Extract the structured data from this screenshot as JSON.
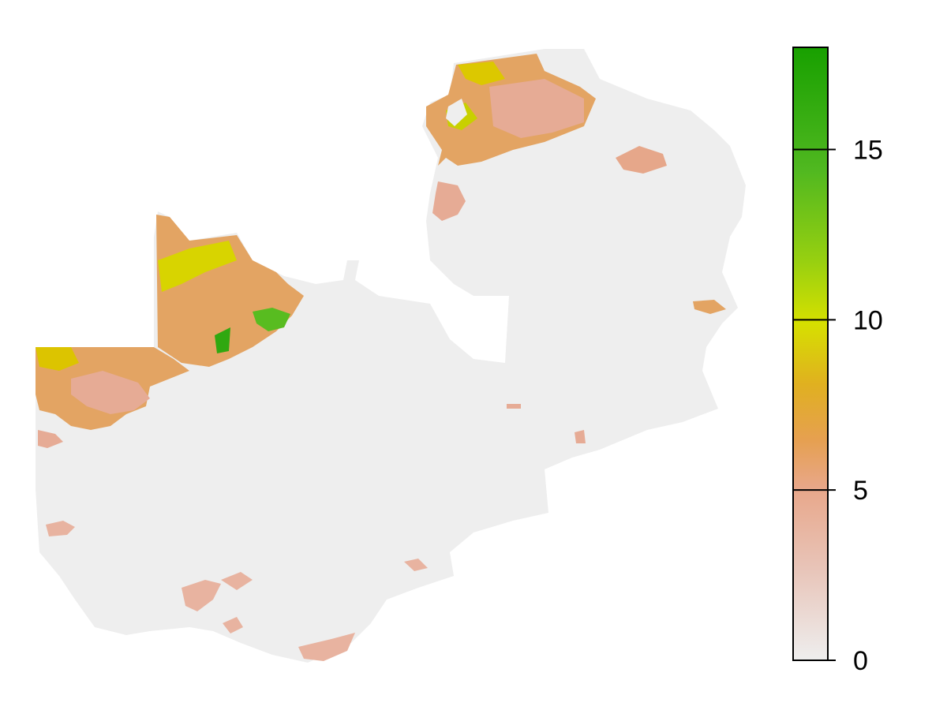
{
  "legend": {
    "min": 0,
    "max": 18,
    "ticks": [
      0,
      5,
      10,
      15
    ],
    "tick_labels": [
      "0",
      "5",
      "10",
      "15"
    ],
    "color_stops": [
      "#eeeeee",
      "#e8b3a0",
      "#e6a050",
      "#e0c020",
      "#c8dc00",
      "#78c820",
      "#40b020",
      "#18a000"
    ]
  },
  "colors": {
    "background_land": "#eeeeee",
    "low_pink": "#e8b3a0",
    "mid_orange": "#e3a463",
    "yellow": "#dcd200",
    "green": "#40b020"
  }
}
